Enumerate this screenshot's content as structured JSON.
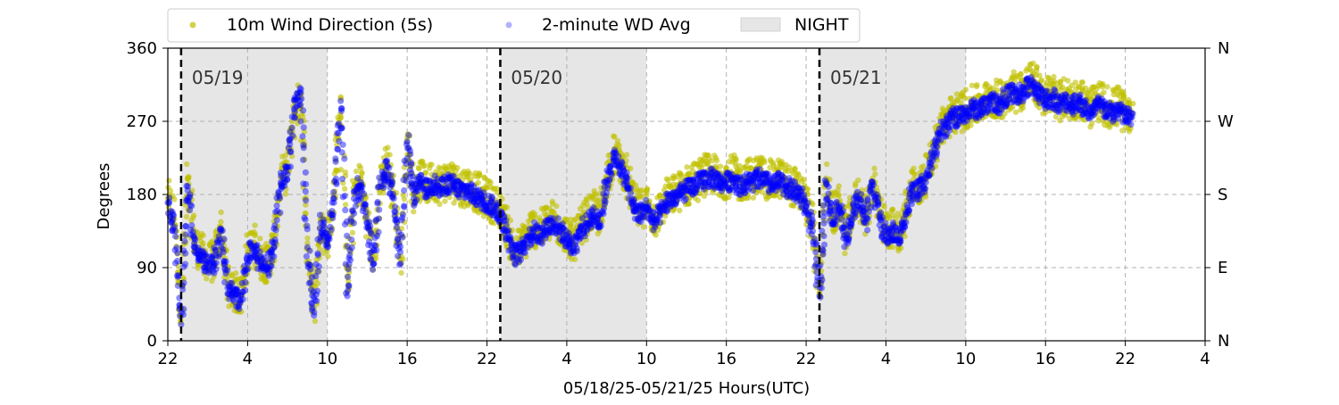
{
  "chart_data": {
    "type": "scatter",
    "xlabel": "05/18/25-05/21/25  Hours(UTC)",
    "ylabel": "Degrees",
    "xlim": [
      -2,
      76
    ],
    "ylim": [
      0,
      360
    ],
    "x_ticks": [
      {
        "value": -2,
        "label": "22"
      },
      {
        "value": 4,
        "label": "4"
      },
      {
        "value": 10,
        "label": "10"
      },
      {
        "value": 16,
        "label": "16"
      },
      {
        "value": 22,
        "label": "22"
      },
      {
        "value": 28,
        "label": "4"
      },
      {
        "value": 34,
        "label": "10"
      },
      {
        "value": 40,
        "label": "16"
      },
      {
        "value": 46,
        "label": "22"
      },
      {
        "value": 52,
        "label": "4"
      },
      {
        "value": 58,
        "label": "10"
      },
      {
        "value": 64,
        "label": "16"
      },
      {
        "value": 70,
        "label": "22"
      },
      {
        "value": 76,
        "label": "4"
      }
    ],
    "y_ticks": [
      {
        "value": 0,
        "label": "0"
      },
      {
        "value": 90,
        "label": "90"
      },
      {
        "value": 180,
        "label": "180"
      },
      {
        "value": 270,
        "label": "270"
      },
      {
        "value": 360,
        "label": "360"
      }
    ],
    "right_y_ticks": [
      {
        "value": 0,
        "label": "N"
      },
      {
        "value": 90,
        "label": "E"
      },
      {
        "value": 180,
        "label": "S"
      },
      {
        "value": 270,
        "label": "W"
      },
      {
        "value": 360,
        "label": "N"
      }
    ],
    "grid": true,
    "legend_position": "top-left, above plot",
    "legend": [
      {
        "label": "10m Wind Direction (5s)",
        "kind": "point",
        "color": "#bfbf00"
      },
      {
        "label": "2-minute WD Avg",
        "kind": "point",
        "color": "#0000ff"
      },
      {
        "label": "NIGHT",
        "kind": "patch",
        "color": "#e6e6e6"
      }
    ],
    "night_spans": [
      [
        -1,
        10
      ],
      [
        23,
        34
      ],
      [
        47,
        58
      ]
    ],
    "day_lines": [
      {
        "x": -1,
        "label": "05/19"
      },
      {
        "x": 23,
        "label": "05/20"
      },
      {
        "x": 47,
        "label": "05/21"
      }
    ],
    "colors": {
      "wd_5s": "#bfbf00",
      "wd_avg": "#0000ff",
      "night": "#e6e6e6",
      "grid": "#b0b0b0"
    },
    "series": [
      {
        "name": "10m Wind Direction (5s)",
        "color": "#bfbf00",
        "spread": 25,
        "points": [
          [
            -2,
            175
          ],
          [
            -1.5,
            150
          ],
          [
            -1,
            30
          ],
          [
            -0.5,
            200
          ],
          [
            0,
            120
          ],
          [
            0.5,
            110
          ],
          [
            1,
            95
          ],
          [
            1.5,
            100
          ],
          [
            2,
            140
          ],
          [
            2.5,
            70
          ],
          [
            3,
            60
          ],
          [
            3.5,
            55
          ],
          [
            4,
            110
          ],
          [
            4.5,
            120
          ],
          [
            5,
            100
          ],
          [
            5.5,
            95
          ],
          [
            6,
            120
          ],
          [
            6.5,
            200
          ],
          [
            7,
            210
          ],
          [
            7.5,
            280
          ],
          [
            8,
            300
          ],
          [
            8.5,
            120
          ],
          [
            9,
            40
          ],
          [
            9.5,
            150
          ],
          [
            10,
            120
          ],
          [
            10.5,
            180
          ],
          [
            11,
            300
          ],
          [
            11.5,
            60
          ],
          [
            12,
            180
          ],
          [
            12.5,
            200
          ],
          [
            13,
            150
          ],
          [
            13.5,
            100
          ],
          [
            14,
            200
          ],
          [
            14.5,
            220
          ],
          [
            15,
            180
          ],
          [
            15.5,
            100
          ],
          [
            16,
            250
          ],
          [
            16.5,
            180
          ],
          [
            17,
            200
          ],
          [
            17.5,
            190
          ],
          [
            18,
            200
          ],
          [
            18.5,
            190
          ],
          [
            19,
            200
          ],
          [
            19.5,
            195
          ],
          [
            20,
            190
          ],
          [
            20.5,
            190
          ],
          [
            21,
            185
          ],
          [
            21.5,
            180
          ],
          [
            22,
            175
          ],
          [
            22.5,
            170
          ],
          [
            23,
            160
          ],
          [
            23.5,
            140
          ],
          [
            24,
            110
          ],
          [
            24.5,
            115
          ],
          [
            25,
            130
          ],
          [
            25.5,
            140
          ],
          [
            26,
            135
          ],
          [
            26.5,
            145
          ],
          [
            27,
            150
          ],
          [
            27.5,
            140
          ],
          [
            28,
            130
          ],
          [
            28.5,
            120
          ],
          [
            29,
            140
          ],
          [
            29.5,
            150
          ],
          [
            30,
            160
          ],
          [
            30.5,
            150
          ],
          [
            31,
            200
          ],
          [
            31.5,
            230
          ],
          [
            32,
            220
          ],
          [
            32.5,
            200
          ],
          [
            33,
            170
          ],
          [
            33.5,
            160
          ],
          [
            34,
            170
          ],
          [
            34.5,
            150
          ],
          [
            35,
            160
          ],
          [
            35.5,
            175
          ],
          [
            36,
            180
          ],
          [
            36.5,
            185
          ],
          [
            37,
            190
          ],
          [
            37.5,
            195
          ],
          [
            38,
            200
          ],
          [
            38.5,
            205
          ],
          [
            39,
            205
          ],
          [
            39.5,
            200
          ],
          [
            40,
            200
          ],
          [
            40.5,
            205
          ],
          [
            41,
            195
          ],
          [
            41.5,
            200
          ],
          [
            42,
            200
          ],
          [
            42.5,
            205
          ],
          [
            43,
            200
          ],
          [
            43.5,
            195
          ],
          [
            44,
            200
          ],
          [
            44.5,
            195
          ],
          [
            45,
            190
          ],
          [
            45.5,
            185
          ],
          [
            46,
            170
          ],
          [
            46.5,
            140
          ],
          [
            47,
            60
          ],
          [
            47.5,
            200
          ],
          [
            48,
            150
          ],
          [
            48.5,
            170
          ],
          [
            49,
            130
          ],
          [
            49.5,
            160
          ],
          [
            50,
            180
          ],
          [
            50.5,
            150
          ],
          [
            51,
            200
          ],
          [
            51.5,
            160
          ],
          [
            52,
            130
          ],
          [
            52.5,
            140
          ],
          [
            53,
            130
          ],
          [
            53.5,
            160
          ],
          [
            54,
            190
          ],
          [
            54.5,
            190
          ],
          [
            55,
            200
          ],
          [
            55.5,
            230
          ],
          [
            56,
            260
          ],
          [
            56.5,
            270
          ],
          [
            57,
            280
          ],
          [
            57.5,
            280
          ],
          [
            58,
            285
          ],
          [
            58.5,
            290
          ],
          [
            59,
            290
          ],
          [
            59.5,
            295
          ],
          [
            60,
            300
          ],
          [
            60.5,
            295
          ],
          [
            61,
            305
          ],
          [
            61.5,
            310
          ],
          [
            62,
            305
          ],
          [
            62.5,
            315
          ],
          [
            63,
            320
          ],
          [
            63.5,
            310
          ],
          [
            64,
            300
          ],
          [
            64.5,
            305
          ],
          [
            65,
            295
          ],
          [
            65.5,
            300
          ],
          [
            66,
            295
          ],
          [
            66.5,
            300
          ],
          [
            67,
            290
          ],
          [
            67.5,
            285
          ],
          [
            68,
            295
          ],
          [
            68.5,
            290
          ],
          [
            69,
            285
          ],
          [
            69.5,
            290
          ],
          [
            70,
            280
          ],
          [
            70.5,
            280
          ]
        ]
      },
      {
        "name": "2-minute WD Avg",
        "color": "#0000ff",
        "spread": 12,
        "points": [
          [
            -2,
            170
          ],
          [
            -1.5,
            140
          ],
          [
            -1,
            20
          ],
          [
            -0.5,
            190
          ],
          [
            0,
            115
          ],
          [
            0.5,
            105
          ],
          [
            1,
            90
          ],
          [
            1.5,
            95
          ],
          [
            2,
            135
          ],
          [
            2.5,
            65
          ],
          [
            3,
            55
          ],
          [
            3.5,
            50
          ],
          [
            4,
            105
          ],
          [
            4.5,
            115
          ],
          [
            5,
            95
          ],
          [
            5.5,
            90
          ],
          [
            6,
            115
          ],
          [
            6.5,
            195
          ],
          [
            7,
            205
          ],
          [
            7.5,
            285
          ],
          [
            8,
            305
          ],
          [
            8.5,
            115
          ],
          [
            9,
            35
          ],
          [
            9.5,
            145
          ],
          [
            10,
            115
          ],
          [
            10.5,
            175
          ],
          [
            11,
            295
          ],
          [
            11.5,
            55
          ],
          [
            12,
            175
          ],
          [
            12.5,
            195
          ],
          [
            13,
            145
          ],
          [
            13.5,
            95
          ],
          [
            14,
            195
          ],
          [
            14.5,
            215
          ],
          [
            15,
            175
          ],
          [
            15.5,
            95
          ],
          [
            16,
            245
          ],
          [
            16.5,
            175
          ],
          [
            17,
            195
          ],
          [
            17.5,
            185
          ],
          [
            18,
            195
          ],
          [
            18.5,
            185
          ],
          [
            19,
            195
          ],
          [
            19.5,
            190
          ],
          [
            20,
            185
          ],
          [
            20.5,
            185
          ],
          [
            21,
            180
          ],
          [
            21.5,
            175
          ],
          [
            22,
            170
          ],
          [
            22.5,
            165
          ],
          [
            23,
            155
          ],
          [
            23.5,
            135
          ],
          [
            24,
            105
          ],
          [
            24.5,
            110
          ],
          [
            25,
            125
          ],
          [
            25.5,
            135
          ],
          [
            26,
            130
          ],
          [
            26.5,
            140
          ],
          [
            27,
            145
          ],
          [
            27.5,
            135
          ],
          [
            28,
            125
          ],
          [
            28.5,
            115
          ],
          [
            29,
            135
          ],
          [
            29.5,
            145
          ],
          [
            30,
            155
          ],
          [
            30.5,
            145
          ],
          [
            31,
            195
          ],
          [
            31.5,
            225
          ],
          [
            32,
            215
          ],
          [
            32.5,
            195
          ],
          [
            33,
            165
          ],
          [
            33.5,
            155
          ],
          [
            34,
            165
          ],
          [
            34.5,
            145
          ],
          [
            35,
            155
          ],
          [
            35.5,
            170
          ],
          [
            36,
            175
          ],
          [
            36.5,
            180
          ],
          [
            37,
            185
          ],
          [
            37.5,
            190
          ],
          [
            38,
            195
          ],
          [
            38.5,
            200
          ],
          [
            39,
            200
          ],
          [
            39.5,
            195
          ],
          [
            40,
            195
          ],
          [
            40.5,
            200
          ],
          [
            41,
            190
          ],
          [
            41.5,
            195
          ],
          [
            42,
            195
          ],
          [
            42.5,
            200
          ],
          [
            43,
            195
          ],
          [
            43.5,
            190
          ],
          [
            44,
            195
          ],
          [
            44.5,
            190
          ],
          [
            45,
            185
          ],
          [
            45.5,
            180
          ],
          [
            46,
            165
          ],
          [
            46.5,
            135
          ],
          [
            47,
            55
          ],
          [
            47.5,
            195
          ],
          [
            48,
            145
          ],
          [
            48.5,
            165
          ],
          [
            49,
            125
          ],
          [
            49.5,
            155
          ],
          [
            50,
            175
          ],
          [
            50.5,
            145
          ],
          [
            51,
            195
          ],
          [
            51.5,
            155
          ],
          [
            52,
            125
          ],
          [
            52.5,
            135
          ],
          [
            53,
            125
          ],
          [
            53.5,
            155
          ],
          [
            54,
            185
          ],
          [
            54.5,
            185
          ],
          [
            55,
            195
          ],
          [
            55.5,
            225
          ],
          [
            56,
            255
          ],
          [
            56.5,
            265
          ],
          [
            57,
            275
          ],
          [
            57.5,
            275
          ],
          [
            58,
            280
          ],
          [
            58.5,
            285
          ],
          [
            59,
            285
          ],
          [
            59.5,
            290
          ],
          [
            60,
            295
          ],
          [
            60.5,
            290
          ],
          [
            61,
            300
          ],
          [
            61.5,
            305
          ],
          [
            62,
            300
          ],
          [
            62.5,
            310
          ],
          [
            63,
            315
          ],
          [
            63.5,
            305
          ],
          [
            64,
            295
          ],
          [
            64.5,
            300
          ],
          [
            65,
            290
          ],
          [
            65.5,
            295
          ],
          [
            66,
            290
          ],
          [
            66.5,
            295
          ],
          [
            67,
            285
          ],
          [
            67.5,
            280
          ],
          [
            68,
            290
          ],
          [
            68.5,
            285
          ],
          [
            69,
            280
          ],
          [
            69.5,
            285
          ],
          [
            70,
            275
          ],
          [
            70.5,
            275
          ]
        ]
      }
    ]
  }
}
